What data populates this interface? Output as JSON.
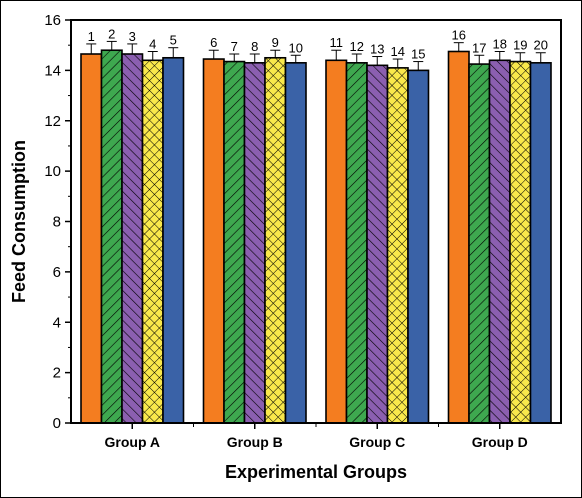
{
  "chart_data": {
    "type": "bar",
    "title": "",
    "xlabel": "Experimental Groups",
    "ylabel": "Feed Consumption",
    "ylim": [
      0,
      16
    ],
    "yticks": [
      0,
      2,
      4,
      6,
      8,
      10,
      12,
      14,
      16
    ],
    "grid": false,
    "legend": "none",
    "categories": [
      "Group A",
      "Group B",
      "Group C",
      "Group D"
    ],
    "series": [
      {
        "fill": "solid",
        "color": "#f47d20",
        "values": [
          14.65,
          14.45,
          14.4,
          14.75
        ],
        "errors": [
          0.4,
          0.35,
          0.4,
          0.35
        ],
        "labels": [
          "1",
          "6",
          "11",
          "16"
        ]
      },
      {
        "fill": "hatch",
        "color": "#3ea84f",
        "values": [
          14.8,
          14.35,
          14.3,
          14.25
        ],
        "errors": [
          0.35,
          0.3,
          0.35,
          0.35
        ],
        "labels": [
          "2",
          "7",
          "12",
          "17"
        ]
      },
      {
        "fill": "hatch",
        "color": "#8b5fb0",
        "values": [
          14.65,
          14.3,
          14.2,
          14.4
        ],
        "errors": [
          0.4,
          0.35,
          0.35,
          0.35
        ],
        "labels": [
          "3",
          "8",
          "13",
          "18"
        ]
      },
      {
        "fill": "crosshatch",
        "color": "#f9e84b",
        "values": [
          14.4,
          14.5,
          14.1,
          14.35
        ],
        "errors": [
          0.35,
          0.3,
          0.35,
          0.35
        ],
        "labels": [
          "4",
          "9",
          "14",
          "19"
        ]
      },
      {
        "fill": "solid",
        "color": "#3a62a7",
        "values": [
          14.5,
          14.3,
          14.0,
          14.3
        ],
        "errors": [
          0.4,
          0.3,
          0.35,
          0.4
        ],
        "labels": [
          "5",
          "10",
          "15",
          "20"
        ]
      }
    ]
  }
}
